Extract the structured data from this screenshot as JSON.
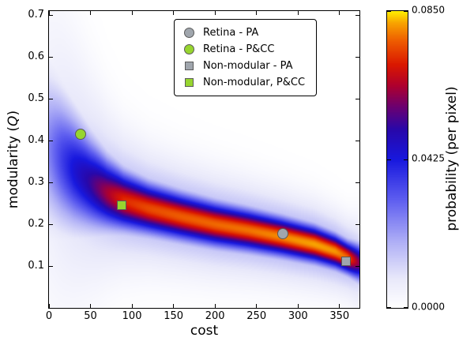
{
  "figure": {
    "xlabel": "cost",
    "ylabel_prefix": "modularity (",
    "ylabel_math": "Q",
    "ylabel_suffix": ")",
    "colorbar_label": "probability (per pixel)",
    "background": "#ffffff"
  },
  "axes": {
    "x_min": 0,
    "x_max": 374,
    "y_min": 0,
    "y_max": 0.71,
    "x_ticks": [
      {
        "v": 0,
        "label": "0"
      },
      {
        "v": 50,
        "label": "50"
      },
      {
        "v": 100,
        "label": "100"
      },
      {
        "v": 150,
        "label": "150"
      },
      {
        "v": 200,
        "label": "200"
      },
      {
        "v": 250,
        "label": "250"
      },
      {
        "v": 300,
        "label": "300"
      },
      {
        "v": 350,
        "label": "350"
      }
    ],
    "y_ticks": [
      {
        "v": 0.1,
        "label": "0.1"
      },
      {
        "v": 0.2,
        "label": "0.2"
      },
      {
        "v": 0.3,
        "label": "0.3"
      },
      {
        "v": 0.4,
        "label": "0.4"
      },
      {
        "v": 0.5,
        "label": "0.5"
      },
      {
        "v": 0.6,
        "label": "0.6"
      },
      {
        "v": 0.7,
        "label": "0.7"
      }
    ]
  },
  "legend": {
    "edge_color": "#5a5a5a",
    "items": [
      {
        "label": "Retina - PA",
        "marker": "circle",
        "fill": "#a0a6ad"
      },
      {
        "label": "Retina - P&CC",
        "marker": "circle",
        "fill": "#97d52f"
      },
      {
        "label": "Non-modular - PA",
        "marker": "square",
        "fill": "#a0a6ad"
      },
      {
        "label": "Non-modular, P&CC",
        "marker": "square",
        "fill": "#97d52f"
      }
    ]
  },
  "colorbar": {
    "vmin": 0.0,
    "vmax": 0.085,
    "ticks": [
      {
        "v": 0.0,
        "label": "0.0000"
      },
      {
        "v": 0.0425,
        "label": "0.0425"
      },
      {
        "v": 0.085,
        "label": "0.0850"
      }
    ]
  },
  "chart_data": {
    "type": "heatmap",
    "title": "",
    "xlabel": "cost",
    "ylabel": "modularity (Q)",
    "xlim": [
      0,
      374
    ],
    "ylim": [
      0,
      0.71
    ],
    "grid": false,
    "legend_position": "upper center",
    "colorbar_label": "probability (per pixel)",
    "colorbar_range": [
      0.0,
      0.085
    ],
    "points": [
      {
        "series": "Retina - P&CC",
        "x": 38,
        "y": 0.415,
        "marker": "circle",
        "fill": "#97d52f"
      },
      {
        "series": "Non-modular, P&CC",
        "x": 88,
        "y": 0.245,
        "marker": "square",
        "fill": "#97d52f"
      },
      {
        "series": "Retina - PA",
        "x": 282,
        "y": 0.178,
        "marker": "circle",
        "fill": "#a0a6ad"
      },
      {
        "series": "Non-modular - PA",
        "x": 358,
        "y": 0.112,
        "marker": "square",
        "fill": "#a0a6ad"
      }
    ],
    "density_ridge": [
      {
        "x": 0,
        "q": 0.38,
        "sigma": 0.12,
        "amp": 0.3
      },
      {
        "x": 15,
        "q": 0.355,
        "sigma": 0.105,
        "amp": 0.42
      },
      {
        "x": 30,
        "q": 0.33,
        "sigma": 0.09,
        "amp": 0.52
      },
      {
        "x": 50,
        "q": 0.3,
        "sigma": 0.072,
        "amp": 0.62
      },
      {
        "x": 70,
        "q": 0.275,
        "sigma": 0.056,
        "amp": 0.74
      },
      {
        "x": 90,
        "q": 0.257,
        "sigma": 0.046,
        "amp": 0.84
      },
      {
        "x": 120,
        "q": 0.238,
        "sigma": 0.04,
        "amp": 0.88
      },
      {
        "x": 160,
        "q": 0.218,
        "sigma": 0.037,
        "amp": 0.9
      },
      {
        "x": 200,
        "q": 0.2,
        "sigma": 0.035,
        "amp": 0.91
      },
      {
        "x": 240,
        "q": 0.186,
        "sigma": 0.033,
        "amp": 0.92
      },
      {
        "x": 280,
        "q": 0.17,
        "sigma": 0.031,
        "amp": 0.94
      },
      {
        "x": 320,
        "q": 0.152,
        "sigma": 0.029,
        "amp": 0.96
      },
      {
        "x": 345,
        "q": 0.135,
        "sigma": 0.027,
        "amp": 0.95
      },
      {
        "x": 360,
        "q": 0.12,
        "sigma": 0.026,
        "amp": 0.9
      },
      {
        "x": 374,
        "q": 0.108,
        "sigma": 0.03,
        "amp": 0.7
      }
    ],
    "colormap_stops": [
      [
        0.0,
        255,
        255,
        255
      ],
      [
        0.1,
        232,
        232,
        250
      ],
      [
        0.22,
        176,
        176,
        246
      ],
      [
        0.36,
        96,
        96,
        240
      ],
      [
        0.5,
        24,
        24,
        222
      ],
      [
        0.6,
        40,
        8,
        170
      ],
      [
        0.68,
        110,
        0,
        110
      ],
      [
        0.75,
        175,
        0,
        45
      ],
      [
        0.82,
        218,
        24,
        0
      ],
      [
        0.9,
        238,
        92,
        0
      ],
      [
        0.96,
        248,
        162,
        0
      ],
      [
        1.0,
        255,
        238,
        0
      ]
    ]
  }
}
